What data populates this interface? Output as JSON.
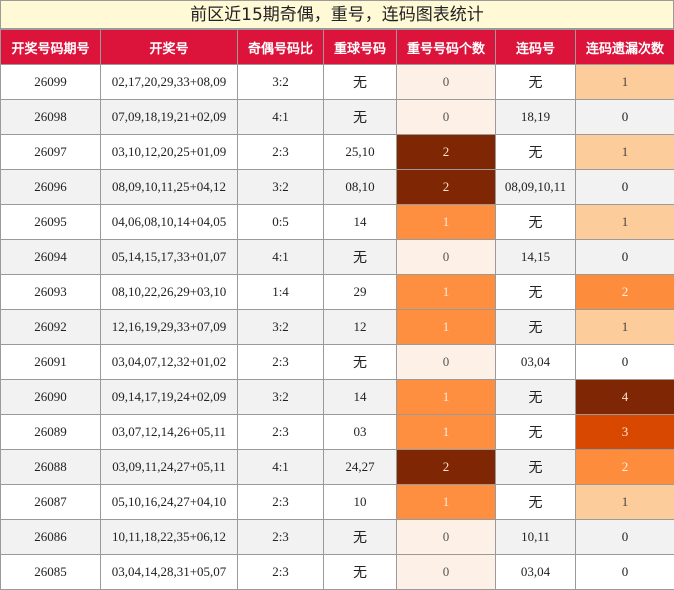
{
  "title": "前区近15期奇偶，重号，连码图表统计",
  "headers": [
    "开奖号码期号",
    "开奖号",
    "奇偶号码比",
    "重球号码",
    "重号号码个数",
    "连码号",
    "连码遗漏次数"
  ],
  "rows": [
    {
      "period": "26099",
      "numbers": "02,17,20,29,33+08,09",
      "ratio": "3:2",
      "repeat": "无",
      "repeat_count": "0",
      "consec": "无",
      "miss": "1"
    },
    {
      "period": "26098",
      "numbers": "07,09,18,19,21+02,09",
      "ratio": "4:1",
      "repeat": "无",
      "repeat_count": "0",
      "consec": "18,19",
      "miss": "0"
    },
    {
      "period": "26097",
      "numbers": "03,10,12,20,25+01,09",
      "ratio": "2:3",
      "repeat": "25,10",
      "repeat_count": "2",
      "consec": "无",
      "miss": "1"
    },
    {
      "period": "26096",
      "numbers": "08,09,10,11,25+04,12",
      "ratio": "3:2",
      "repeat": "08,10",
      "repeat_count": "2",
      "consec": "08,09,10,11",
      "miss": "0"
    },
    {
      "period": "26095",
      "numbers": "04,06,08,10,14+04,05",
      "ratio": "0:5",
      "repeat": "14",
      "repeat_count": "1",
      "consec": "无",
      "miss": "1"
    },
    {
      "period": "26094",
      "numbers": "05,14,15,17,33+01,07",
      "ratio": "4:1",
      "repeat": "无",
      "repeat_count": "0",
      "consec": "14,15",
      "miss": "0"
    },
    {
      "period": "26093",
      "numbers": "08,10,22,26,29+03,10",
      "ratio": "1:4",
      "repeat": "29",
      "repeat_count": "1",
      "consec": "无",
      "miss": "2"
    },
    {
      "period": "26092",
      "numbers": "12,16,19,29,33+07,09",
      "ratio": "3:2",
      "repeat": "12",
      "repeat_count": "1",
      "consec": "无",
      "miss": "1"
    },
    {
      "period": "26091",
      "numbers": "03,04,07,12,32+01,02",
      "ratio": "2:3",
      "repeat": "无",
      "repeat_count": "0",
      "consec": "03,04",
      "miss": "0"
    },
    {
      "period": "26090",
      "numbers": "09,14,17,19,24+02,09",
      "ratio": "3:2",
      "repeat": "14",
      "repeat_count": "1",
      "consec": "无",
      "miss": "4"
    },
    {
      "period": "26089",
      "numbers": "03,07,12,14,26+05,11",
      "ratio": "2:3",
      "repeat": "03",
      "repeat_count": "1",
      "consec": "无",
      "miss": "3"
    },
    {
      "period": "26088",
      "numbers": "03,09,11,24,27+05,11",
      "ratio": "4:1",
      "repeat": "24,27",
      "repeat_count": "2",
      "consec": "无",
      "miss": "2"
    },
    {
      "period": "26087",
      "numbers": "05,10,16,24,27+04,10",
      "ratio": "2:3",
      "repeat": "10",
      "repeat_count": "1",
      "consec": "无",
      "miss": "1"
    },
    {
      "period": "26086",
      "numbers": "10,11,18,22,35+06,12",
      "ratio": "2:3",
      "repeat": "无",
      "repeat_count": "0",
      "consec": "10,11",
      "miss": "0"
    },
    {
      "period": "26085",
      "numbers": "03,04,14,28,31+05,07",
      "ratio": "2:3",
      "repeat": "无",
      "repeat_count": "0",
      "consec": "03,04",
      "miss": "0"
    }
  ]
}
